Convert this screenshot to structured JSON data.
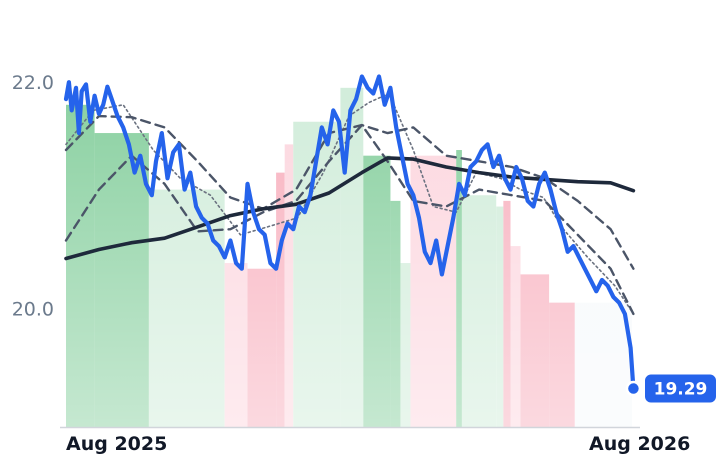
{
  "chart_data": {
    "type": "line",
    "x_tick_labels": [
      "Aug 2025",
      "Aug 2026"
    ],
    "x_tick_dates": [
      "2025-08-01",
      "2026-08-01"
    ],
    "x_range": [
      "2025-08-01",
      "2026-09-01"
    ],
    "y_tick_labels": [
      "22.0",
      "20.0"
    ],
    "y_ticks": [
      22.0,
      20.0
    ],
    "ylim": [
      18.95,
      22.55
    ],
    "last_value_label": "19.29",
    "series": [
      {
        "key": "price",
        "color": "#2563eb",
        "x": [
          "2025-08-01",
          "2025-08-03",
          "2025-08-05",
          "2025-08-08",
          "2025-08-10",
          "2025-08-12",
          "2025-08-15",
          "2025-08-18",
          "2025-08-21",
          "2025-08-24",
          "2025-08-27",
          "2025-08-30",
          "2025-09-02",
          "2025-09-06",
          "2025-09-10",
          "2025-09-14",
          "2025-09-18",
          "2025-09-22",
          "2025-09-26",
          "2025-09-30",
          "2025-10-03",
          "2025-10-07",
          "2025-10-11",
          "2025-10-15",
          "2025-10-19",
          "2025-10-23",
          "2025-10-27",
          "2025-10-31",
          "2025-11-04",
          "2025-11-08",
          "2025-11-12",
          "2025-11-16",
          "2025-11-20",
          "2025-11-24",
          "2025-11-28",
          "2025-12-02",
          "2025-12-06",
          "2025-12-10",
          "2025-12-14",
          "2025-12-18",
          "2025-12-22",
          "2025-12-26",
          "2025-12-30",
          "2026-01-03",
          "2026-01-07",
          "2026-01-11",
          "2026-01-15",
          "2026-01-19",
          "2026-01-23",
          "2026-01-27",
          "2026-01-31",
          "2026-02-04",
          "2026-02-08",
          "2026-02-12",
          "2026-02-16",
          "2026-02-20",
          "2026-02-24",
          "2026-02-28",
          "2026-03-04",
          "2026-03-08",
          "2026-03-12",
          "2026-03-16",
          "2026-03-20",
          "2026-03-24",
          "2026-03-28",
          "2026-04-01",
          "2026-04-05",
          "2026-04-09",
          "2026-04-13",
          "2026-04-17",
          "2026-04-21",
          "2026-04-25",
          "2026-04-29",
          "2026-05-03",
          "2026-05-07",
          "2026-05-11",
          "2026-05-15",
          "2026-05-19",
          "2026-05-23",
          "2026-05-27",
          "2026-05-31",
          "2026-06-04",
          "2026-06-08",
          "2026-06-12",
          "2026-06-16",
          "2026-06-20",
          "2026-06-24",
          "2026-06-28",
          "2026-07-02",
          "2026-07-06",
          "2026-07-10",
          "2026-07-14",
          "2026-07-18",
          "2026-07-22",
          "2026-07-26",
          "2026-07-30",
          "2026-08-03",
          "2026-08-07",
          "2026-08-11",
          "2026-08-15",
          "2026-08-19",
          "2026-08-23",
          "2026-08-27",
          "2026-08-31",
          "2026-09-02"
        ],
        "values": [
          21.85,
          22.0,
          21.75,
          21.95,
          21.55,
          21.92,
          21.98,
          21.65,
          21.88,
          21.72,
          21.8,
          21.96,
          21.85,
          21.7,
          21.6,
          21.45,
          21.2,
          21.35,
          21.1,
          21.0,
          21.3,
          21.55,
          21.15,
          21.38,
          21.45,
          21.05,
          21.2,
          20.9,
          20.8,
          20.75,
          20.6,
          20.55,
          20.45,
          20.6,
          20.4,
          20.35,
          21.1,
          20.85,
          20.7,
          20.65,
          20.4,
          20.35,
          20.6,
          20.75,
          20.7,
          20.9,
          20.85,
          21.0,
          21.3,
          21.6,
          21.45,
          21.75,
          21.65,
          21.2,
          21.75,
          21.85,
          22.05,
          21.95,
          21.9,
          22.05,
          21.8,
          21.95,
          21.6,
          21.35,
          21.1,
          21.0,
          20.8,
          20.5,
          20.4,
          20.6,
          20.3,
          20.55,
          20.8,
          21.1,
          21.0,
          21.25,
          21.3,
          21.4,
          21.45,
          21.25,
          21.35,
          21.15,
          21.05,
          21.25,
          21.15,
          20.95,
          20.9,
          21.1,
          21.2,
          21.05,
          20.85,
          20.7,
          20.5,
          20.55,
          20.45,
          20.35,
          20.25,
          20.15,
          20.25,
          20.2,
          20.1,
          20.05,
          19.95,
          19.65,
          19.29
        ]
      },
      {
        "key": "long_ma",
        "color": "#1e293b",
        "x": [
          "2025-08-01",
          "2025-08-24",
          "2025-09-16",
          "2025-10-09",
          "2025-11-01",
          "2025-11-24",
          "2025-12-17",
          "2026-01-09",
          "2026-02-01",
          "2026-02-24",
          "2026-03-14",
          "2026-04-01",
          "2026-04-24",
          "2026-05-17",
          "2026-06-09",
          "2026-07-02",
          "2026-07-25",
          "2026-08-17",
          "2026-09-02"
        ],
        "values": [
          20.44,
          20.52,
          20.58,
          20.62,
          20.72,
          20.82,
          20.88,
          20.92,
          21.02,
          21.2,
          21.33,
          21.32,
          21.25,
          21.2,
          21.16,
          21.14,
          21.12,
          21.11,
          21.04
        ]
      },
      {
        "key": "band_upper",
        "color": "#4b5568",
        "dash": "dashed",
        "x": [
          "2025-08-01",
          "2025-08-24",
          "2025-09-16",
          "2025-10-09",
          "2025-11-01",
          "2025-11-24",
          "2025-12-17",
          "2026-01-09",
          "2026-02-01",
          "2026-02-24",
          "2026-03-14",
          "2026-04-01",
          "2026-04-24",
          "2026-05-17",
          "2026-06-09",
          "2026-07-02",
          "2026-07-25",
          "2026-08-17",
          "2026-09-02"
        ],
        "values": [
          21.4,
          21.7,
          21.69,
          21.6,
          21.3,
          20.98,
          20.88,
          21.05,
          21.55,
          21.62,
          21.55,
          21.6,
          21.35,
          21.3,
          21.25,
          21.15,
          20.95,
          20.7,
          20.35
        ]
      },
      {
        "key": "band_lower",
        "color": "#4b5568",
        "dash": "dashed",
        "x": [
          "2025-08-01",
          "2025-08-24",
          "2025-09-16",
          "2025-10-09",
          "2025-11-01",
          "2025-11-24",
          "2025-12-17",
          "2026-01-09",
          "2026-02-01",
          "2026-02-24",
          "2026-03-14",
          "2026-04-01",
          "2026-04-24",
          "2026-05-17",
          "2026-06-09",
          "2026-07-02",
          "2026-07-25",
          "2026-08-17",
          "2026-09-02"
        ],
        "values": [
          20.6,
          21.05,
          21.35,
          21.1,
          20.68,
          20.7,
          20.85,
          20.95,
          21.3,
          21.62,
          21.3,
          20.95,
          20.9,
          21.05,
          21.0,
          20.95,
          20.65,
          20.35,
          19.95
        ]
      },
      {
        "key": "short_ma",
        "color": "#6b7280",
        "dash": "dotted",
        "x": [
          "2025-08-01",
          "2025-08-20",
          "2025-09-10",
          "2025-10-01",
          "2025-10-20",
          "2025-11-10",
          "2025-12-01",
          "2025-12-20",
          "2026-01-10",
          "2026-01-28",
          "2026-02-15",
          "2026-03-01",
          "2026-03-15",
          "2026-04-01",
          "2026-04-15",
          "2026-05-01",
          "2026-05-15",
          "2026-06-01",
          "2026-06-15",
          "2026-07-01",
          "2026-07-15",
          "2026-08-01",
          "2026-08-20",
          "2026-09-02"
        ],
        "values": [
          21.45,
          21.75,
          21.8,
          21.4,
          21.15,
          21.0,
          20.65,
          20.72,
          20.8,
          21.2,
          21.7,
          21.82,
          21.9,
          21.4,
          20.9,
          20.85,
          21.2,
          21.15,
          21.05,
          20.98,
          20.7,
          20.45,
          20.2,
          19.95
        ]
      }
    ],
    "regimes": [
      {
        "start": "2025-08-01",
        "end": "2025-08-21",
        "type": "strong-up",
        "level": 21.8
      },
      {
        "start": "2025-08-21",
        "end": "2025-09-28",
        "type": "strong-up",
        "level": 21.55
      },
      {
        "start": "2025-09-28",
        "end": "2025-11-20",
        "type": "weak-up",
        "level": 21.05
      },
      {
        "start": "2025-11-20",
        "end": "2025-12-06",
        "type": "weak-down",
        "level": 20.4
      },
      {
        "start": "2025-12-06",
        "end": "2025-12-26",
        "type": "strong-down",
        "level": 20.35
      },
      {
        "start": "2025-12-26",
        "end": "2026-01-01",
        "type": "strong-down",
        "level": 21.2
      },
      {
        "start": "2026-01-01",
        "end": "2026-01-07",
        "type": "weak-down",
        "level": 21.45
      },
      {
        "start": "2026-01-07",
        "end": "2026-02-09",
        "type": "weak-up",
        "level": 21.65
      },
      {
        "start": "2026-02-09",
        "end": "2026-02-25",
        "type": "weak-up",
        "level": 21.95
      },
      {
        "start": "2026-02-25",
        "end": "2026-03-16",
        "type": "strong-up",
        "level": 21.35
      },
      {
        "start": "2026-03-16",
        "end": "2026-03-23",
        "type": "strong-up",
        "level": 20.95
      },
      {
        "start": "2026-03-23",
        "end": "2026-03-30",
        "type": "weak-up",
        "level": 20.4
      },
      {
        "start": "2026-03-30",
        "end": "2026-05-01",
        "type": "weak-down",
        "level": 21.35
      },
      {
        "start": "2026-05-01",
        "end": "2026-05-05",
        "type": "strong-up",
        "level": 21.4
      },
      {
        "start": "2026-05-05",
        "end": "2026-05-29",
        "type": "weak-up",
        "level": 21.0
      },
      {
        "start": "2026-05-29",
        "end": "2026-06-03",
        "type": "weak-up",
        "level": 20.9
      },
      {
        "start": "2026-06-03",
        "end": "2026-06-08",
        "type": "strong-down",
        "level": 20.95
      },
      {
        "start": "2026-06-08",
        "end": "2026-06-15",
        "type": "weak-down",
        "level": 20.55
      },
      {
        "start": "2026-06-15",
        "end": "2026-07-05",
        "type": "strong-down",
        "level": 20.3
      },
      {
        "start": "2026-07-05",
        "end": "2026-07-23",
        "type": "strong-down",
        "level": 20.05
      },
      {
        "start": "2026-07-23",
        "end": "2026-09-02",
        "type": "neutral",
        "level": 20.05
      }
    ],
    "regime_colors": {
      "strong-up": "#7fcc98",
      "weak-up": "#cdebd7",
      "weak-down": "#fcd3dc",
      "strong-down": "#f7aab9",
      "neutral": "#f5f8fb"
    },
    "grid": false,
    "legend": "none"
  }
}
